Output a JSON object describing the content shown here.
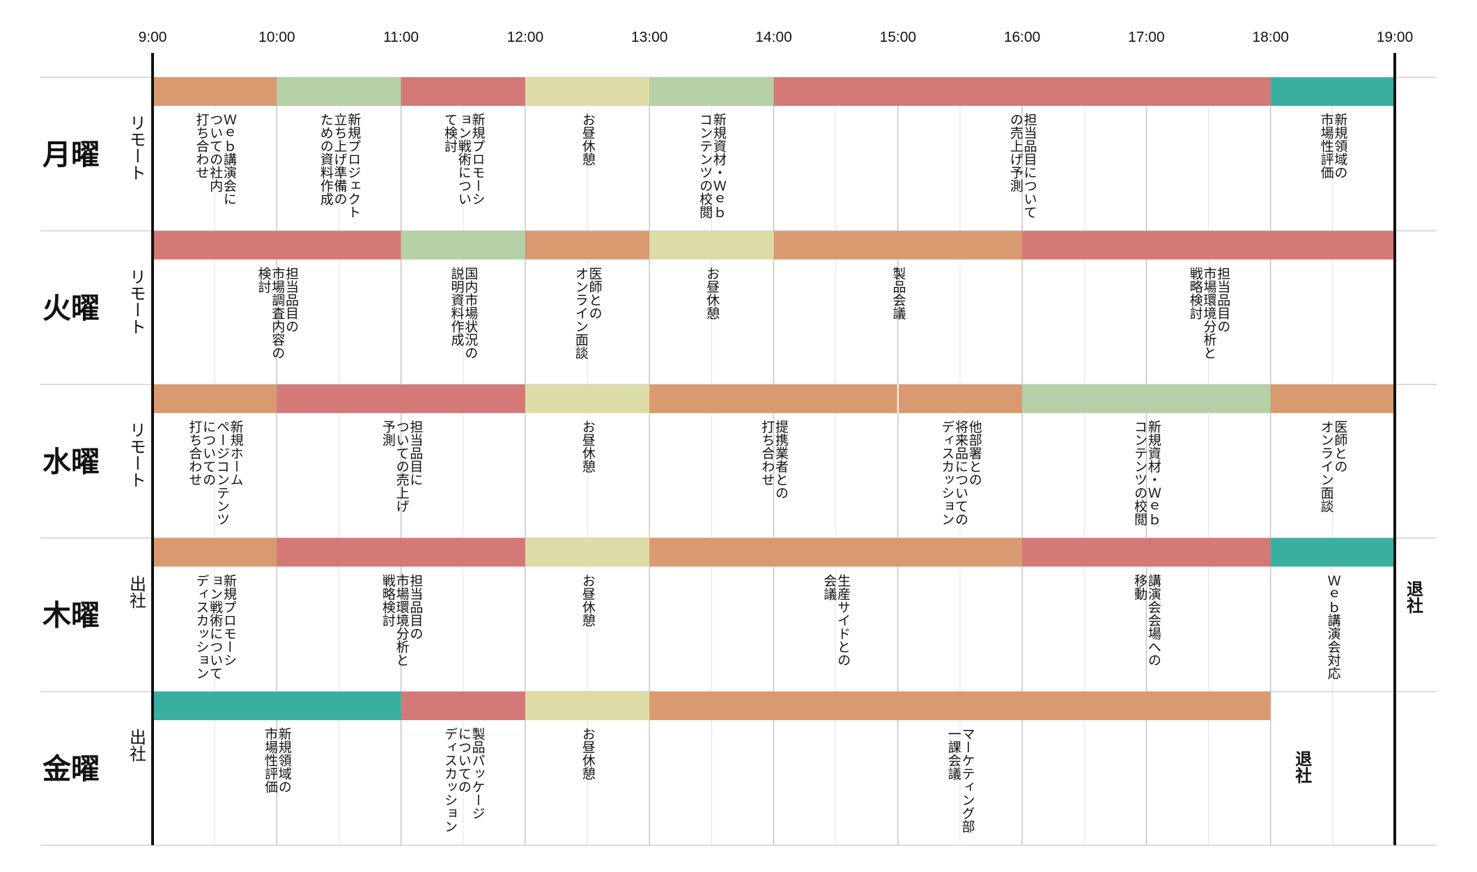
{
  "hours": [
    "9:00",
    "10:00",
    "11:00",
    "12:00",
    "13:00",
    "14:00",
    "15:00",
    "16:00",
    "17:00",
    "18:00",
    "19:00"
  ],
  "colors": {
    "orange": "#d99a70",
    "red": "#d47878",
    "green": "#b5cfa7",
    "yellow": "#dedca6",
    "teal": "#3aaf9f"
  },
  "days": [
    {
      "name": "月曜",
      "mode": "リモート",
      "blocks": [
        {
          "start": 9,
          "end": 10,
          "color": "orange",
          "label": "Ｗｅｂ講演会に\nついての社内\n打ち合わせ"
        },
        {
          "start": 10,
          "end": 11,
          "color": "green",
          "label": "新規プロジェクト\n立ち上げ準備の\nための資料作成"
        },
        {
          "start": 11,
          "end": 12,
          "color": "red",
          "label": "新規プロモーシ\nョン戦術につい\nて検討"
        },
        {
          "start": 12,
          "end": 13,
          "color": "yellow",
          "label": "お昼休憩"
        },
        {
          "start": 13,
          "end": 14,
          "color": "green",
          "label": "新規資材・Ｗｅｂ\nコンテンツの校閲"
        },
        {
          "start": 14,
          "end": 18,
          "color": "red",
          "label": "担当品目について\nの売上げ予測"
        },
        {
          "start": 18,
          "end": 19,
          "color": "teal",
          "label": "新規領域の\n市場性評価"
        }
      ],
      "end_label": ""
    },
    {
      "name": "火曜",
      "mode": "リモート",
      "blocks": [
        {
          "start": 9,
          "end": 11,
          "color": "red",
          "label": "担当品目の\n市場調査内容の\n検討"
        },
        {
          "start": 11,
          "end": 12,
          "color": "green",
          "label": "国内市場状況の\n説明資料作成"
        },
        {
          "start": 12,
          "end": 13,
          "color": "orange",
          "label": "医師との\nオンライン面談"
        },
        {
          "start": 13,
          "end": 14,
          "color": "yellow",
          "label": "お昼休憩"
        },
        {
          "start": 14,
          "end": 16,
          "color": "orange",
          "label": "製品会議"
        },
        {
          "start": 16,
          "end": 19,
          "color": "red",
          "label": "担当品目の\n市場環境分析と\n戦略検討"
        }
      ],
      "end_label": ""
    },
    {
      "name": "水曜",
      "mode": "リモート",
      "blocks": [
        {
          "start": 9,
          "end": 10,
          "color": "orange",
          "label": "新規ホーム\nページコンテンツ\nについての\n打ち合わせ"
        },
        {
          "start": 10,
          "end": 12,
          "color": "red",
          "label": "担当品目に\nついての売上げ\n予測"
        },
        {
          "start": 12,
          "end": 13,
          "color": "yellow",
          "label": "お昼休憩"
        },
        {
          "start": 13,
          "end": 15,
          "color": "orange",
          "label": "提携業者との\n打ち合わせ"
        },
        {
          "start": 15,
          "end": 16,
          "color": "orange",
          "label": "他部署との\n将来品についての\nディスカッション"
        },
        {
          "start": 16,
          "end": 18,
          "color": "green",
          "label": "新規資材・Ｗｅｂ\nコンテンツの校閲"
        },
        {
          "start": 18,
          "end": 19,
          "color": "orange",
          "label": "医師との\nオンライン面談"
        }
      ],
      "end_label": ""
    },
    {
      "name": "木曜",
      "mode": "出社",
      "blocks": [
        {
          "start": 9,
          "end": 10,
          "color": "orange",
          "label": "新規プロモーシ\nョン戦術について\nディスカッション"
        },
        {
          "start": 10,
          "end": 12,
          "color": "red",
          "label": "担当品目の\n市場環境分析と\n戦略検討"
        },
        {
          "start": 12,
          "end": 13,
          "color": "yellow",
          "label": "お昼休憩"
        },
        {
          "start": 13,
          "end": 16,
          "color": "orange",
          "label": "生産サイドとの\n会議"
        },
        {
          "start": 16,
          "end": 18,
          "color": "red",
          "label": "講演会会場への\n移動"
        },
        {
          "start": 18,
          "end": 19,
          "color": "teal",
          "label": "Ｗｅｂ講演会対応"
        }
      ],
      "end_label": "退社"
    },
    {
      "name": "金曜",
      "mode": "出社",
      "blocks": [
        {
          "start": 9,
          "end": 11,
          "color": "teal",
          "label": "新規領域の\n市場性評価"
        },
        {
          "start": 11,
          "end": 12,
          "color": "red",
          "label": "製品パッケージ\nについての\nディスカッション"
        },
        {
          "start": 12,
          "end": 13,
          "color": "yellow",
          "label": "お昼休憩"
        },
        {
          "start": 13,
          "end": 18,
          "color": "orange",
          "label": "マーケティング部\n一課会議"
        }
      ],
      "end_label": "退社"
    }
  ]
}
